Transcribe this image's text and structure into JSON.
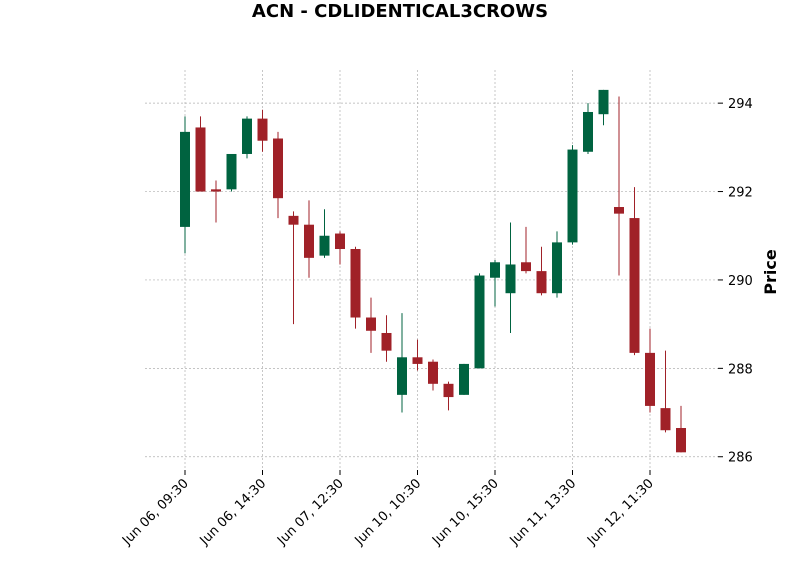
{
  "chart_data": {
    "type": "candlestick",
    "title": "ACN - CDLIDENTICAL3CROWS",
    "ylabel": "Price",
    "ylim": [
      285.7,
      294.75
    ],
    "yticks": [
      286,
      288,
      290,
      292,
      294
    ],
    "xtick_labels": [
      {
        "index": 0,
        "label": "Jun 06, 09:30"
      },
      {
        "index": 5,
        "label": "Jun 06, 14:30"
      },
      {
        "index": 10,
        "label": "Jun 07, 12:30"
      },
      {
        "index": 15,
        "label": "Jun 10, 10:30"
      },
      {
        "index": 20,
        "label": "Jun 10, 15:30"
      },
      {
        "index": 25,
        "label": "Jun 11, 13:30"
      },
      {
        "index": 30,
        "label": "Jun 12, 11:30"
      }
    ],
    "colors": {
      "up": "#006340",
      "down": "#a02128"
    },
    "grid": true,
    "candles": [
      {
        "o": 291.2,
        "h": 293.7,
        "l": 290.6,
        "c": 293.35
      },
      {
        "o": 293.45,
        "h": 293.7,
        "l": 292.0,
        "c": 292.0
      },
      {
        "o": 292.05,
        "h": 292.25,
        "l": 291.3,
        "c": 292.0
      },
      {
        "o": 292.05,
        "h": 292.85,
        "l": 292.0,
        "c": 292.85
      },
      {
        "o": 292.85,
        "h": 293.7,
        "l": 292.75,
        "c": 293.65
      },
      {
        "o": 293.65,
        "h": 293.85,
        "l": 292.9,
        "c": 293.15
      },
      {
        "o": 293.2,
        "h": 293.35,
        "l": 291.4,
        "c": 291.85
      },
      {
        "o": 291.45,
        "h": 291.55,
        "l": 289.0,
        "c": 291.25
      },
      {
        "o": 291.25,
        "h": 291.8,
        "l": 290.05,
        "c": 290.5
      },
      {
        "o": 290.55,
        "h": 291.6,
        "l": 290.5,
        "c": 291.0
      },
      {
        "o": 291.05,
        "h": 291.1,
        "l": 290.35,
        "c": 290.7
      },
      {
        "o": 290.7,
        "h": 290.75,
        "l": 288.9,
        "c": 289.15
      },
      {
        "o": 289.15,
        "h": 289.6,
        "l": 288.35,
        "c": 288.85
      },
      {
        "o": 288.8,
        "h": 289.2,
        "l": 288.15,
        "c": 288.4
      },
      {
        "o": 287.4,
        "h": 289.25,
        "l": 287.0,
        "c": 288.25
      },
      {
        "o": 288.25,
        "h": 288.65,
        "l": 287.95,
        "c": 288.1
      },
      {
        "o": 288.15,
        "h": 288.2,
        "l": 287.5,
        "c": 287.65
      },
      {
        "o": 287.65,
        "h": 287.7,
        "l": 287.05,
        "c": 287.35
      },
      {
        "o": 287.4,
        "h": 288.1,
        "l": 287.4,
        "c": 288.1
      },
      {
        "o": 288.0,
        "h": 290.15,
        "l": 288.0,
        "c": 290.1
      },
      {
        "o": 290.05,
        "h": 290.45,
        "l": 289.4,
        "c": 290.4
      },
      {
        "o": 289.7,
        "h": 291.3,
        "l": 288.8,
        "c": 290.35
      },
      {
        "o": 290.4,
        "h": 291.2,
        "l": 290.15,
        "c": 290.2
      },
      {
        "o": 290.2,
        "h": 290.75,
        "l": 289.65,
        "c": 289.7
      },
      {
        "o": 289.7,
        "h": 291.1,
        "l": 289.6,
        "c": 290.85
      },
      {
        "o": 290.85,
        "h": 293.05,
        "l": 290.8,
        "c": 292.95
      },
      {
        "o": 292.9,
        "h": 294.0,
        "l": 292.85,
        "c": 293.8
      },
      {
        "o": 293.75,
        "h": 294.3,
        "l": 293.5,
        "c": 294.3
      },
      {
        "o": 291.65,
        "h": 294.15,
        "l": 290.1,
        "c": 291.5
      },
      {
        "o": 291.4,
        "h": 292.1,
        "l": 288.3,
        "c": 288.35
      },
      {
        "o": 288.35,
        "h": 288.9,
        "l": 287.0,
        "c": 287.15
      },
      {
        "o": 287.1,
        "h": 288.4,
        "l": 286.55,
        "c": 286.6
      },
      {
        "o": 286.65,
        "h": 287.15,
        "l": 286.1,
        "c": 286.1
      }
    ]
  }
}
